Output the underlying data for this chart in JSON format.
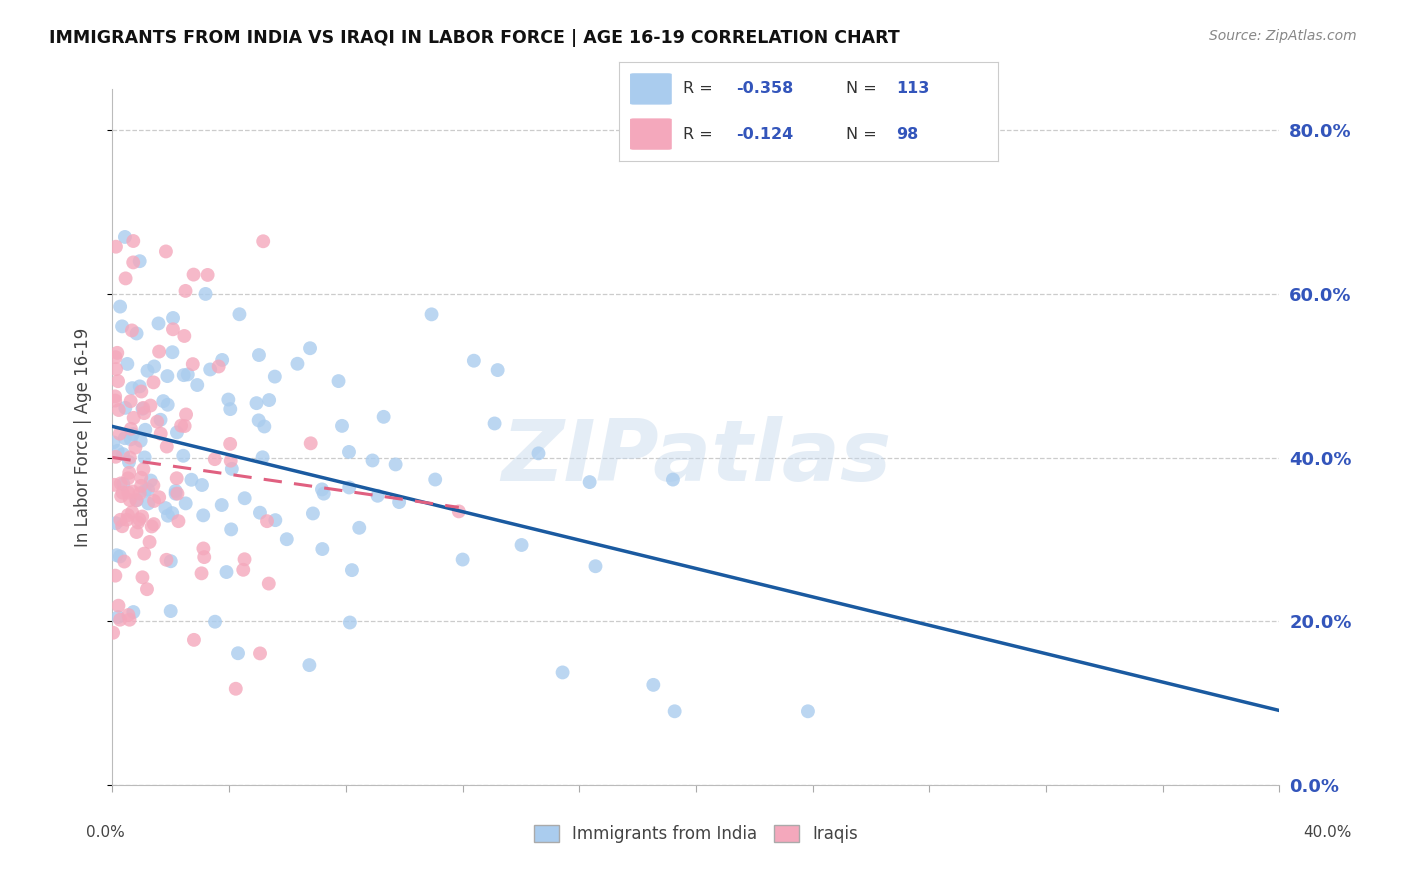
{
  "title": "IMMIGRANTS FROM INDIA VS IRAQI IN LABOR FORCE | AGE 16-19 CORRELATION CHART",
  "source": "Source: ZipAtlas.com",
  "ylabel": "In Labor Force | Age 16-19",
  "legend_india": "Immigrants from India",
  "legend_iraqi": "Iraqis",
  "R_india": -0.358,
  "N_india": 113,
  "R_iraqi": -0.124,
  "N_iraqi": 98,
  "color_india": "#AACCEE",
  "color_iraqi": "#F4A8BC",
  "color_india_line": "#1A5AA0",
  "color_iraqi_line": "#E06080",
  "watermark": "ZIPatlas",
  "xmin": 0.0,
  "xmax": 0.4,
  "ymin": 0.0,
  "ymax": 0.85,
  "ytick_positions": [
    0.0,
    0.2,
    0.4,
    0.6,
    0.8
  ],
  "right_tick_color": "#3355BB",
  "background_color": "#FFFFFF",
  "title_color": "#111111",
  "source_color": "#888888",
  "legend_text_color": "#3355BB"
}
